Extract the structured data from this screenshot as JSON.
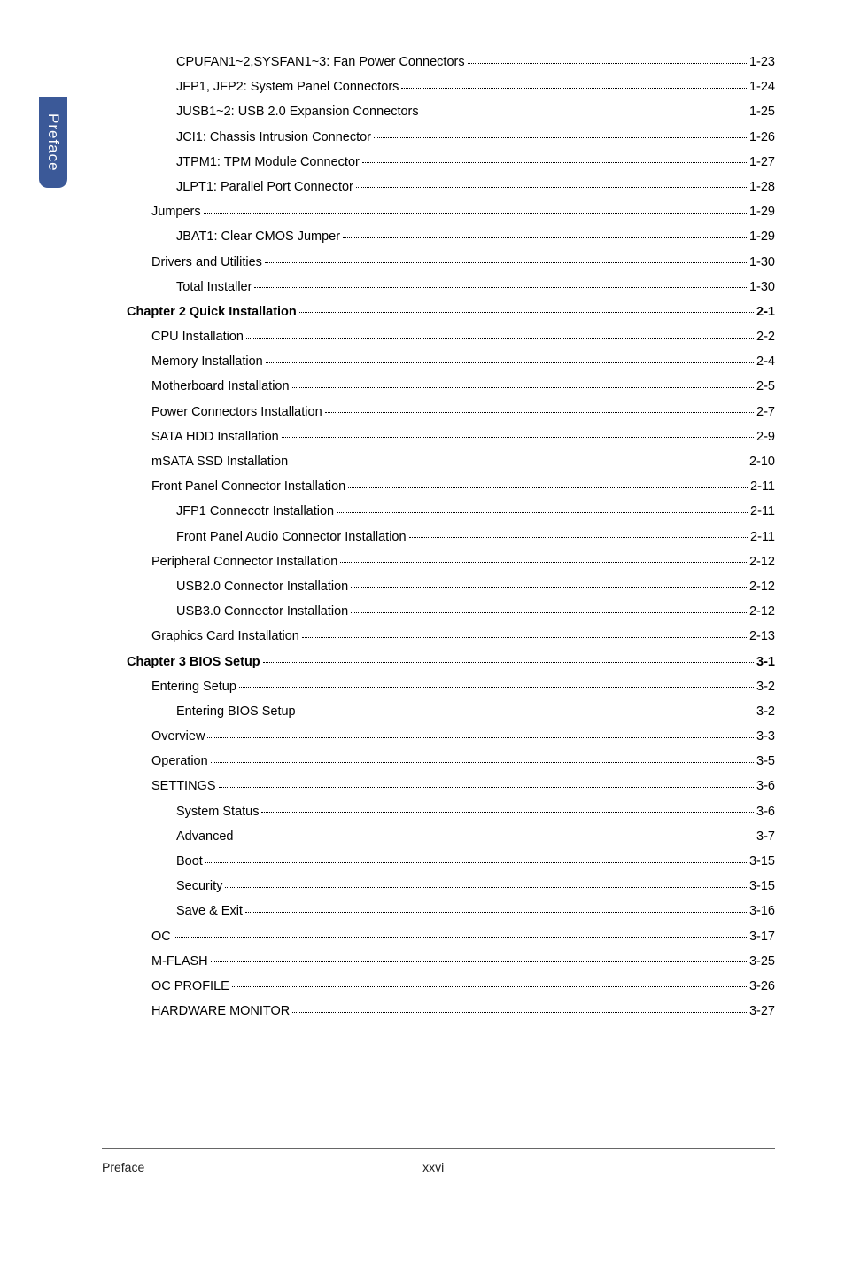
{
  "sidebar": {
    "label": "Preface"
  },
  "toc": [
    {
      "label": "CPUFAN1~2,SYSFAN1~3: Fan Power Connectors",
      "page": "1-23",
      "indent": 3,
      "bold": false
    },
    {
      "label": "JFP1, JFP2: System Panel Connectors",
      "page": "1-24",
      "indent": 3,
      "bold": false
    },
    {
      "label": "JUSB1~2: USB 2.0 Expansion Connectors",
      "page": "1-25",
      "indent": 3,
      "bold": false
    },
    {
      "label": "JCI1: Chassis Intrusion Connector",
      "page": "1-26",
      "indent": 3,
      "bold": false
    },
    {
      "label": "JTPM1: TPM Module Connector ",
      "page": "1-27",
      "indent": 3,
      "bold": false
    },
    {
      "label": "JLPT1: Parallel Port Connector",
      "page": "1-28",
      "indent": 3,
      "bold": false
    },
    {
      "label": "Jumpers",
      "page": "1-29",
      "indent": 2,
      "bold": false
    },
    {
      "label": "JBAT1: Clear CMOS Jumper",
      "page": "1-29",
      "indent": 3,
      "bold": false
    },
    {
      "label": "Drivers and Utilities",
      "page": "1-30",
      "indent": 2,
      "bold": false
    },
    {
      "label": "Total Installer",
      "page": "1-30",
      "indent": 3,
      "bold": false
    },
    {
      "label": "Chapter 2 Quick Installation",
      "page": "2-1",
      "indent": 1,
      "bold": true
    },
    {
      "label": "CPU Installation",
      "page": "2-2",
      "indent": 2,
      "bold": false
    },
    {
      "label": "Memory Installation",
      "page": "2-4",
      "indent": 2,
      "bold": false
    },
    {
      "label": "Motherboard Installation",
      "page": "2-5",
      "indent": 2,
      "bold": false
    },
    {
      "label": "Power Connectors Installation",
      "page": "2-7",
      "indent": 2,
      "bold": false
    },
    {
      "label": "SATA HDD Installation",
      "page": "2-9",
      "indent": 2,
      "bold": false
    },
    {
      "label": "mSATA SSD Installation",
      "page": "2-10",
      "indent": 2,
      "bold": false
    },
    {
      "label": "Front Panel Connector Installation",
      "page": "2-11",
      "indent": 2,
      "bold": false
    },
    {
      "label": "JFP1 Connecotr Installation",
      "page": "2-11",
      "indent": 3,
      "bold": false
    },
    {
      "label": "Front Panel Audio Connector Installation",
      "page": "2-11",
      "indent": 3,
      "bold": false
    },
    {
      "label": "Peripheral Connector Installation",
      "page": "2-12",
      "indent": 2,
      "bold": false
    },
    {
      "label": "USB2.0 Connector Installation",
      "page": "2-12",
      "indent": 3,
      "bold": false
    },
    {
      "label": "USB3.0 Connector Installation",
      "page": "2-12",
      "indent": 3,
      "bold": false
    },
    {
      "label": "Graphics Card Installation",
      "page": "2-13",
      "indent": 2,
      "bold": false
    },
    {
      "label": "Chapter 3 BIOS Setup",
      "page": "3-1",
      "indent": 1,
      "bold": true
    },
    {
      "label": "Entering Setup",
      "page": "3-2",
      "indent": 2,
      "bold": false
    },
    {
      "label": "Entering BIOS Setup",
      "page": "3-2",
      "indent": 3,
      "bold": false
    },
    {
      "label": "Overview",
      "page": "3-3",
      "indent": 2,
      "bold": false
    },
    {
      "label": "Operation",
      "page": "3-5",
      "indent": 2,
      "bold": false
    },
    {
      "label": "SETTINGS",
      "page": "3-6",
      "indent": 2,
      "bold": false
    },
    {
      "label": "System Status",
      "page": "3-6",
      "indent": 3,
      "bold": false
    },
    {
      "label": "Advanced",
      "page": "3-7",
      "indent": 3,
      "bold": false
    },
    {
      "label": "Boot",
      "page": "3-15",
      "indent": 3,
      "bold": false
    },
    {
      "label": "Security",
      "page": "3-15",
      "indent": 3,
      "bold": false
    },
    {
      "label": "Save & Exit",
      "page": "3-16",
      "indent": 3,
      "bold": false
    },
    {
      "label": "OC",
      "page": "3-17",
      "indent": 2,
      "bold": false
    },
    {
      "label": "M-FLASH",
      "page": "3-25",
      "indent": 2,
      "bold": false
    },
    {
      "label": "OC PROFILE",
      "page": "3-26",
      "indent": 2,
      "bold": false
    },
    {
      "label": "HARDWARE MONITOR",
      "page": "3-27",
      "indent": 2,
      "bold": false
    }
  ],
  "footer": {
    "left": "Preface",
    "center": "xxvi"
  },
  "colors": {
    "sidebar_bg": "#3b5998",
    "sidebar_text": "#ffffff",
    "text": "#000000",
    "bg": "#ffffff"
  }
}
